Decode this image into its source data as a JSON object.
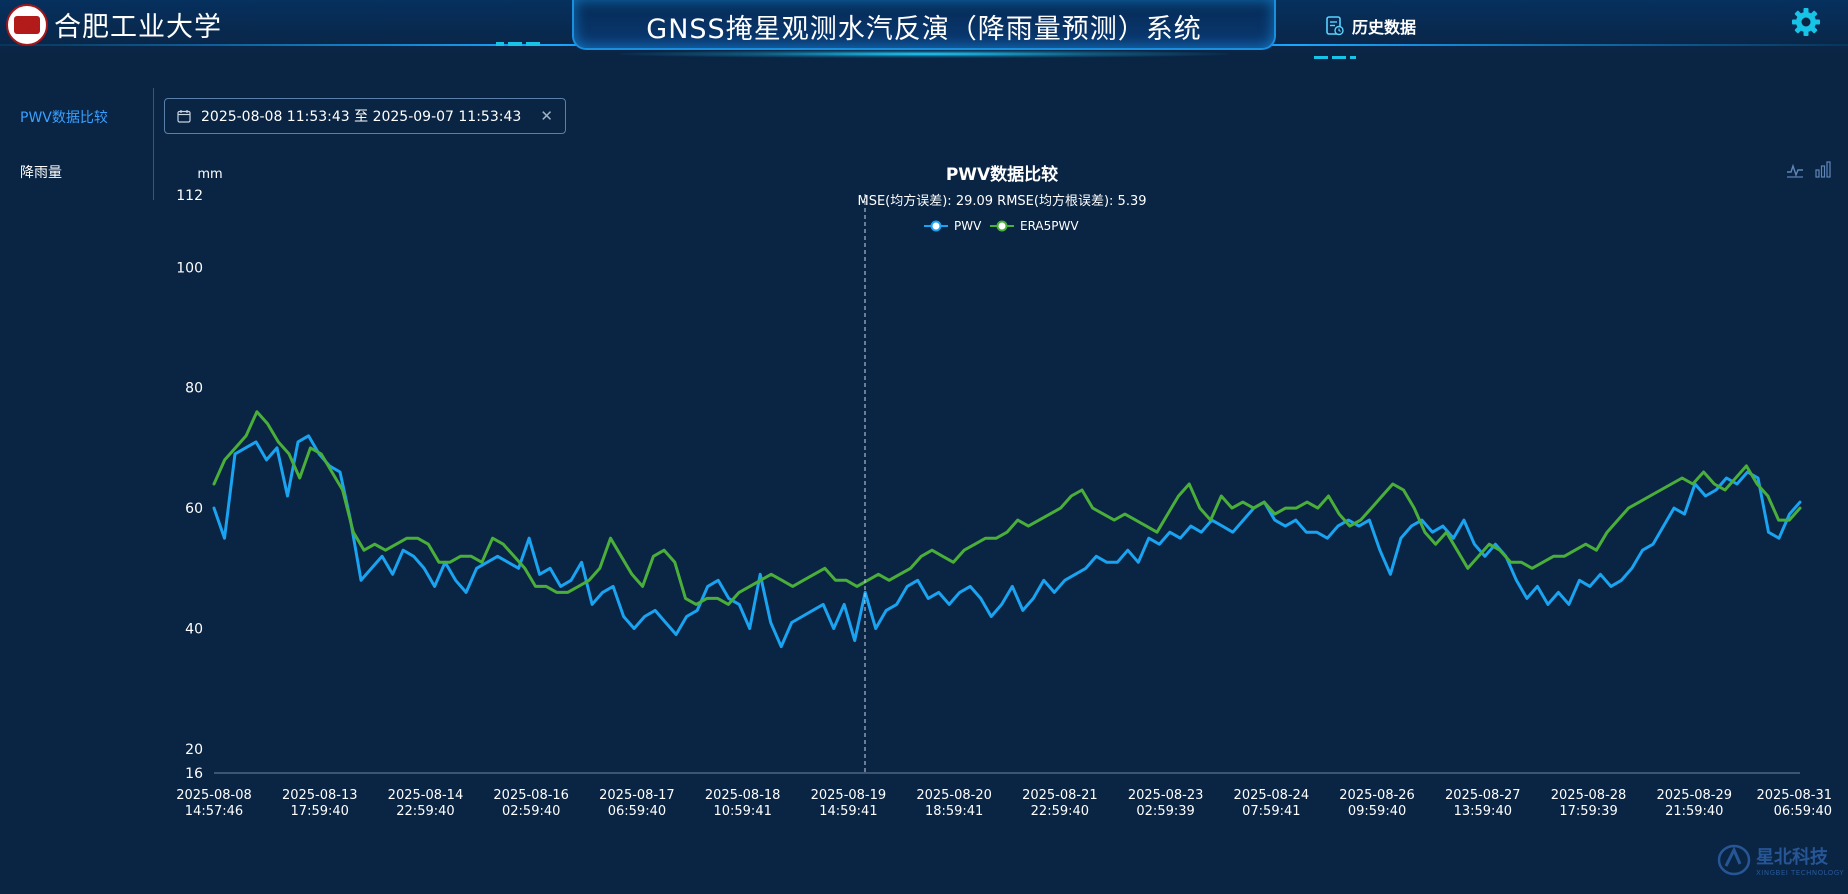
{
  "header": {
    "school_name": "合肥工业大学",
    "system_title": "GNSS掩星观测水汽反演（降雨量预测）系统",
    "history_label": "历史数据",
    "history_icon": "document-history-icon",
    "settings_icon": "gear-icon",
    "accent_color": "#1aa6ff"
  },
  "sidebar": {
    "items": [
      {
        "label": "PWV数据比较",
        "active": true
      },
      {
        "label": "降雨量",
        "active": false
      }
    ]
  },
  "datepicker": {
    "value": "2025-08-08 11:53:43 至 2025-09-07 11:53:43",
    "icon": "calendar-icon",
    "clear_icon": "close-icon"
  },
  "toolbox": {
    "line_icon": "line-chart-icon",
    "bar_icon": "bar-chart-icon"
  },
  "watermark": {
    "brand": "星北科技",
    "sub": "XINGBEI TECHNOLOGY"
  },
  "chart_data": {
    "type": "line",
    "title": "PWV数据比较",
    "subtitle": "MSE(均方误差): 29.09  RMSE(均方根误差): 5.39",
    "yunit": "mm",
    "ylim": [
      16,
      112
    ],
    "yticks": [
      16,
      20,
      40,
      60,
      80,
      100,
      112
    ],
    "grid": false,
    "legend_position": "top-center",
    "xticklabels": [
      [
        "2025-08-08",
        "14:57:46"
      ],
      [
        "2025-08-13",
        "17:59:40"
      ],
      [
        "2025-08-14",
        "22:59:40"
      ],
      [
        "2025-08-16",
        "02:59:40"
      ],
      [
        "2025-08-17",
        "06:59:40"
      ],
      [
        "2025-08-18",
        "10:59:41"
      ],
      [
        "2025-08-19",
        "14:59:41"
      ],
      [
        "2025-08-20",
        "18:59:41"
      ],
      [
        "2025-08-21",
        "22:59:40"
      ],
      [
        "2025-08-23",
        "02:59:39"
      ],
      [
        "2025-08-24",
        "07:59:41"
      ],
      [
        "2025-08-26",
        "09:59:40"
      ],
      [
        "2025-08-27",
        "13:59:40"
      ],
      [
        "2025-08-28",
        "17:59:39"
      ],
      [
        "2025-08-29",
        "21:59:40"
      ],
      [
        "2025-08-31",
        "06:59:40"
      ]
    ],
    "series": [
      {
        "name": "PWV",
        "color": "#1aa3f0",
        "values": [
          60,
          55,
          69,
          70,
          71,
          68,
          70,
          62,
          71,
          72,
          69,
          67,
          66,
          58,
          48,
          50,
          52,
          49,
          53,
          52,
          50,
          47,
          51,
          48,
          46,
          50,
          51,
          52,
          51,
          50,
          55,
          49,
          50,
          47,
          48,
          51,
          44,
          46,
          47,
          42,
          40,
          42,
          43,
          41,
          39,
          42,
          43,
          47,
          48,
          45,
          44,
          40,
          49,
          41,
          37,
          41,
          42,
          43,
          44,
          40,
          44,
          38,
          46,
          40,
          43,
          44,
          47,
          48,
          45,
          46,
          44,
          46,
          47,
          45,
          42,
          44,
          47,
          43,
          45,
          48,
          46,
          48,
          49,
          50,
          52,
          51,
          51,
          53,
          51,
          55,
          54,
          56,
          55,
          57,
          56,
          58,
          57,
          56,
          58,
          60,
          61,
          58,
          57,
          58,
          56,
          56,
          55,
          57,
          58,
          57,
          58,
          53,
          49,
          55,
          57,
          58,
          56,
          57,
          55,
          58,
          54,
          52,
          54,
          52,
          48,
          45,
          47,
          44,
          46,
          44,
          48,
          47,
          49,
          47,
          48,
          50,
          53,
          54,
          57,
          60,
          59,
          64,
          62,
          63,
          65,
          64,
          66,
          65,
          56,
          55,
          59,
          61
        ]
      },
      {
        "name": "ERA5PWV",
        "color": "#4aae3a",
        "values": [
          64,
          68,
          70,
          72,
          76,
          74,
          71,
          69,
          65,
          70,
          69,
          66,
          63,
          56,
          53,
          54,
          53,
          54,
          55,
          55,
          54,
          51,
          51,
          52,
          52,
          51,
          55,
          54,
          52,
          50,
          47,
          47,
          46,
          46,
          47,
          48,
          50,
          55,
          52,
          49,
          47,
          52,
          53,
          51,
          45,
          44,
          45,
          45,
          44,
          46,
          47,
          48,
          49,
          48,
          47,
          48,
          49,
          50,
          48,
          48,
          47,
          48,
          49,
          48,
          49,
          50,
          52,
          53,
          52,
          51,
          53,
          54,
          55,
          55,
          56,
          58,
          57,
          58,
          59,
          60,
          62,
          63,
          60,
          59,
          58,
          59,
          58,
          57,
          56,
          59,
          62,
          64,
          60,
          58,
          62,
          60,
          61,
          60,
          61,
          59,
          60,
          60,
          61,
          60,
          62,
          59,
          57,
          58,
          60,
          62,
          64,
          63,
          60,
          56,
          54,
          56,
          53,
          50,
          52,
          54,
          53,
          51,
          51,
          50,
          51,
          52,
          52,
          53,
          54,
          53,
          56,
          58,
          60,
          61,
          62,
          63,
          64,
          65,
          64,
          66,
          64,
          63,
          65,
          67,
          64,
          62,
          58,
          58,
          60
        ]
      }
    ]
  }
}
